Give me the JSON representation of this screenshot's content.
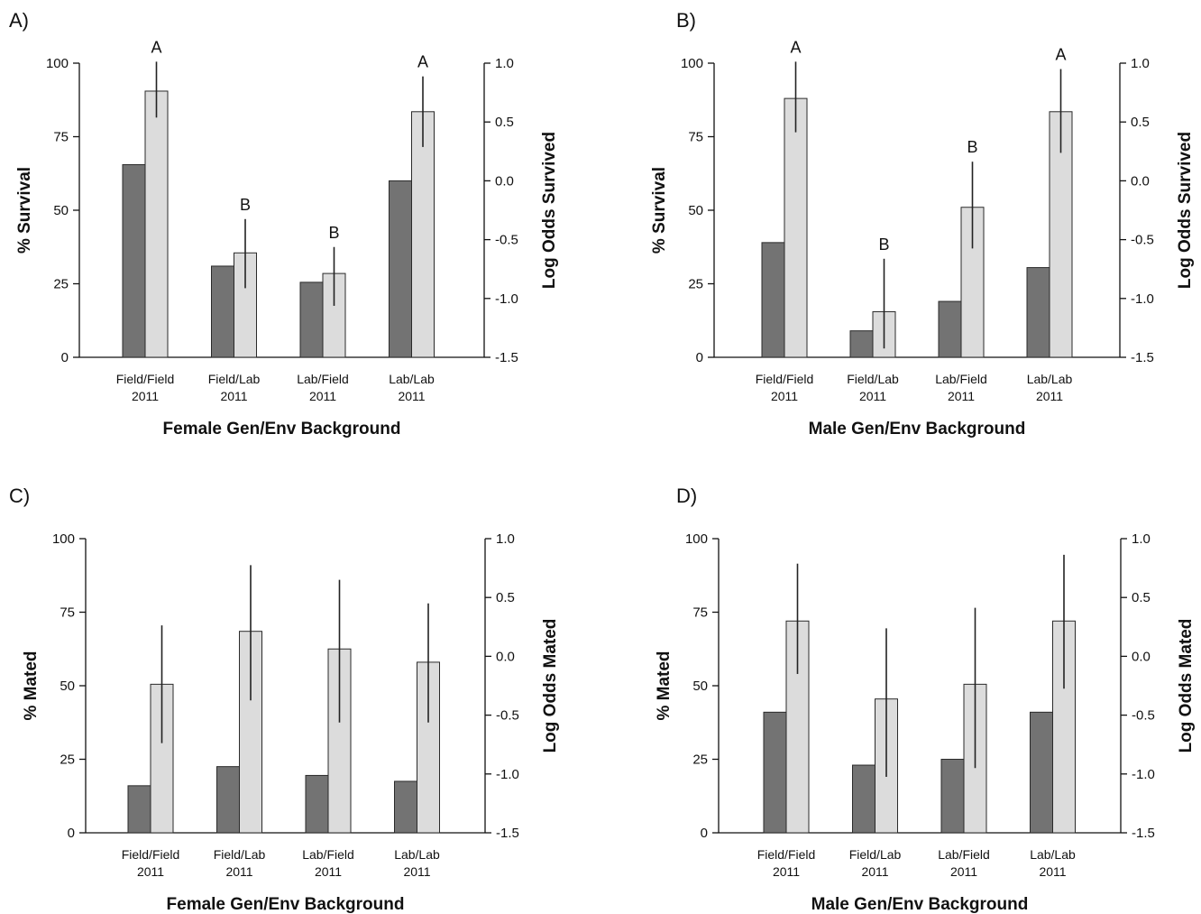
{
  "colors": {
    "dark_bar": "#737373",
    "light_bar": "#dcdcdc",
    "bar_stroke": "#2a2a2a",
    "axis": "#111111"
  },
  "chart_data": [
    {
      "panel_label": "A)",
      "type": "bar",
      "categories": [
        "Field/Field",
        "Field/Lab",
        "Lab/Field",
        "Lab/Lab"
      ],
      "category_sublabels": [
        "2011",
        "2011",
        "2011",
        "2011"
      ],
      "xlabel": "Female Gen/Env Background",
      "ylabel": "% Survival",
      "ylim": [
        0,
        100
      ],
      "yticks": [
        "0",
        "25",
        "50",
        "75",
        "100"
      ],
      "y2label": "Log Odds Survived",
      "y2lim": [
        -1.5,
        1.0
      ],
      "y2ticks": [
        "-1.5",
        "-1.0",
        "-0.5",
        "0.0",
        "0.5",
        "1.0"
      ],
      "series": [
        {
          "values": [
            65.5,
            31,
            25.5,
            60
          ]
        },
        {
          "values": [
            90.5,
            35.5,
            28.5,
            83.5
          ],
          "error_low": [
            81.5,
            23.5,
            17.5,
            71.5
          ],
          "error_high": [
            100.5,
            47,
            37.5,
            95.5
          ]
        }
      ],
      "significance": [
        "A",
        "B",
        "B",
        "A"
      ]
    },
    {
      "panel_label": "B)",
      "type": "bar",
      "categories": [
        "Field/Field",
        "Field/Lab",
        "Lab/Field",
        "Lab/Lab"
      ],
      "category_sublabels": [
        "2011",
        "2011",
        "2011",
        "2011"
      ],
      "xlabel": "Male Gen/Env Background",
      "ylabel": "% Survival",
      "ylim": [
        0,
        100
      ],
      "yticks": [
        "0",
        "25",
        "50",
        "75",
        "100"
      ],
      "y2label": "Log Odds Survived",
      "y2lim": [
        -1.5,
        1.0
      ],
      "y2ticks": [
        "-1.5",
        "-1.0",
        "-0.5",
        "0.0",
        "0.5",
        "1.0"
      ],
      "series": [
        {
          "values": [
            39,
            9,
            19,
            30.5
          ]
        },
        {
          "values": [
            88,
            15.5,
            51,
            83.5
          ],
          "error_low": [
            76.5,
            3,
            37,
            69.5
          ],
          "error_high": [
            100.5,
            33.5,
            66.5,
            98
          ]
        }
      ],
      "significance": [
        "A",
        "B",
        "B",
        "A"
      ]
    },
    {
      "panel_label": "C)",
      "type": "bar",
      "categories": [
        "Field/Field",
        "Field/Lab",
        "Lab/Field",
        "Lab/Lab"
      ],
      "category_sublabels": [
        "2011",
        "2011",
        "2011",
        "2011"
      ],
      "xlabel": "Female Gen/Env Background",
      "ylabel": "% Mated",
      "ylim": [
        0,
        100
      ],
      "yticks": [
        "0",
        "25",
        "50",
        "75",
        "100"
      ],
      "y2label": "Log Odds Mated",
      "y2lim": [
        -1.5,
        1.0
      ],
      "y2ticks": [
        "-1.5",
        "-1.0",
        "-0.5",
        "0.0",
        "0.5",
        "1.0"
      ],
      "series": [
        {
          "values": [
            16,
            22.5,
            19.5,
            17.5
          ]
        },
        {
          "values": [
            50.5,
            68.5,
            62.5,
            58
          ],
          "error_low": [
            30.5,
            45,
            37.5,
            37.5
          ],
          "error_high": [
            70.5,
            91,
            86,
            78
          ]
        }
      ],
      "significance": []
    },
    {
      "panel_label": "D)",
      "type": "bar",
      "categories": [
        "Field/Field",
        "Field/Lab",
        "Lab/Field",
        "Lab/Lab"
      ],
      "category_sublabels": [
        "2011",
        "2011",
        "2011",
        "2011"
      ],
      "xlabel": "Male Gen/Env Background",
      "ylabel": "% Mated",
      "ylim": [
        0,
        100
      ],
      "yticks": [
        "0",
        "25",
        "50",
        "75",
        "100"
      ],
      "y2label": "Log Odds Mated",
      "y2lim": [
        -1.5,
        1.0
      ],
      "y2ticks": [
        "-1.5",
        "-1.0",
        "-0.5",
        "0.0",
        "0.5",
        "1.0"
      ],
      "series": [
        {
          "values": [
            41,
            23,
            25,
            41
          ]
        },
        {
          "values": [
            72,
            45.5,
            50.5,
            72
          ],
          "error_low": [
            54,
            19,
            22,
            49
          ],
          "error_high": [
            91.5,
            69.5,
            76.5,
            94.5
          ]
        }
      ],
      "significance": []
    }
  ]
}
